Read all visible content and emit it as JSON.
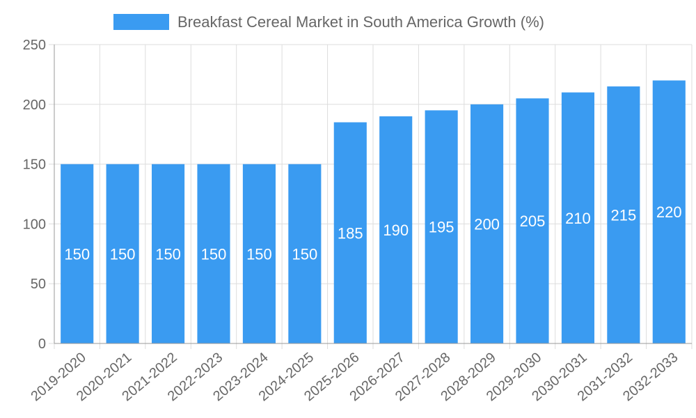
{
  "chart_data": {
    "type": "bar",
    "title": "",
    "legend": {
      "label": "Breakfast Cereal Market in South America Growth (%)",
      "placement": "top-center"
    },
    "categories": [
      "2019-2020",
      "2020-2021",
      "2021-2022",
      "2022-2023",
      "2023-2024",
      "2024-2025",
      "2025-2026",
      "2026-2027",
      "2027-2028",
      "2028-2029",
      "2029-2030",
      "2030-2031",
      "2031-2032",
      "2032-2033"
    ],
    "series": [
      {
        "name": "Breakfast Cereal Market in South America Growth (%)",
        "values": [
          150,
          150,
          150,
          150,
          150,
          150,
          185,
          190,
          195,
          200,
          205,
          210,
          215,
          220
        ],
        "color": "#3a9bf1"
      }
    ],
    "xlabel": "",
    "ylabel": "",
    "ylim": [
      0,
      250
    ],
    "yticks": [
      "0",
      "50",
      "100",
      "150",
      "200",
      "250"
    ],
    "grid": true
  }
}
